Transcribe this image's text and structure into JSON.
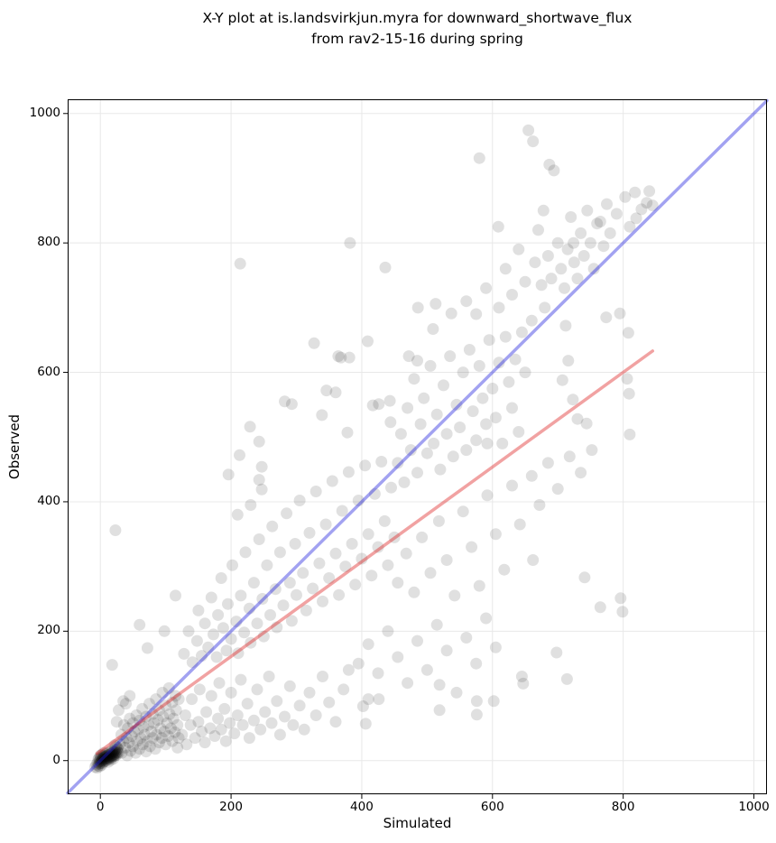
{
  "title": "X-Y plot at is.landsvirkjun.myra for downward_shortwave_flux\nfrom rav2-15-16 during spring",
  "chart_data": {
    "type": "scatter",
    "xlabel": "Simulated",
    "ylabel": "Observed",
    "xlim": [
      -50,
      1020
    ],
    "ylim": [
      -52,
      1022
    ],
    "x_ticks": [
      0,
      200,
      400,
      600,
      800,
      1000
    ],
    "y_ticks": [
      0,
      200,
      400,
      600,
      800,
      1000
    ],
    "grid": true,
    "grid_color": "#e8e8e8",
    "spine_color": "#000000",
    "background": "#ffffff",
    "point_color": "#000000",
    "point_opacity": 0.12,
    "point_radius": 6.5,
    "lines": [
      {
        "name": "one-to-one-line",
        "color": "#2222dd",
        "opacity": 0.42,
        "width": 3.5,
        "from": [
          -50,
          -50
        ],
        "to": [
          1020,
          1020
        ]
      },
      {
        "name": "regression-line",
        "color": "#dd2222",
        "opacity": 0.42,
        "width": 3.5,
        "from": [
          -5,
          11
        ],
        "to": [
          845,
          633
        ]
      }
    ],
    "points": [
      [
        -8,
        -10
      ],
      [
        -6,
        -6
      ],
      [
        -5,
        -11
      ],
      [
        -4,
        -3
      ],
      [
        -3,
        -8
      ],
      [
        -3,
        2
      ],
      [
        -2,
        -5
      ],
      [
        -2,
        4
      ],
      [
        -1,
        -1
      ],
      [
        -1,
        -9
      ],
      [
        0,
        -4
      ],
      [
        0,
        3
      ],
      [
        0,
        8
      ],
      [
        1,
        -2
      ],
      [
        1,
        5
      ],
      [
        2,
        0
      ],
      [
        2,
        -7
      ],
      [
        2,
        9
      ],
      [
        3,
        3
      ],
      [
        3,
        -4
      ],
      [
        4,
        1
      ],
      [
        4,
        7
      ],
      [
        5,
        -2
      ],
      [
        5,
        5
      ],
      [
        5,
        12
      ],
      [
        6,
        2
      ],
      [
        6,
        8
      ],
      [
        7,
        -1
      ],
      [
        7,
        6
      ],
      [
        8,
        3
      ],
      [
        8,
        10
      ],
      [
        9,
        0
      ],
      [
        9,
        7
      ],
      [
        10,
        4
      ],
      [
        10,
        12
      ],
      [
        11,
        2
      ],
      [
        11,
        8
      ],
      [
        12,
        5
      ],
      [
        12,
        -2
      ],
      [
        13,
        9
      ],
      [
        13,
        3
      ],
      [
        14,
        6
      ],
      [
        14,
        13
      ],
      [
        15,
        4
      ],
      [
        15,
        10
      ],
      [
        16,
        7
      ],
      [
        16,
        1
      ],
      [
        17,
        11
      ],
      [
        17,
        5
      ],
      [
        18,
        8
      ],
      [
        18,
        15
      ],
      [
        19,
        6
      ],
      [
        19,
        12
      ],
      [
        20,
        9
      ],
      [
        20,
        3
      ],
      [
        21,
        14
      ],
      [
        21,
        7
      ],
      [
        22,
        10
      ],
      [
        22,
        17
      ],
      [
        23,
        8
      ],
      [
        23,
        13
      ],
      [
        24,
        11
      ],
      [
        25,
        16
      ],
      [
        25,
        9
      ],
      [
        26,
        13
      ],
      [
        27,
        18
      ],
      [
        28,
        12
      ],
      [
        26,
        20
      ],
      [
        24,
        22
      ],
      [
        22,
        24
      ],
      [
        25,
        60
      ],
      [
        28,
        78
      ],
      [
        30,
        25
      ],
      [
        32,
        40
      ],
      [
        33,
        12
      ],
      [
        35,
        30
      ],
      [
        35,
        92
      ],
      [
        36,
        55
      ],
      [
        38,
        20
      ],
      [
        39,
        88
      ],
      [
        40,
        35
      ],
      [
        41,
        8
      ],
      [
        42,
        50
      ],
      [
        44,
        28
      ],
      [
        45,
        65
      ],
      [
        45,
        100
      ],
      [
        46,
        15
      ],
      [
        48,
        38
      ],
      [
        50,
        22
      ],
      [
        50,
        58
      ],
      [
        52,
        45
      ],
      [
        54,
        12
      ],
      [
        55,
        70
      ],
      [
        56,
        30
      ],
      [
        58,
        48
      ],
      [
        60,
        18
      ],
      [
        60,
        62
      ],
      [
        62,
        35
      ],
      [
        64,
        80
      ],
      [
        65,
        25
      ],
      [
        66,
        52
      ],
      [
        68,
        40
      ],
      [
        70,
        14
      ],
      [
        70,
        68
      ],
      [
        72,
        30
      ],
      [
        74,
        55
      ],
      [
        75,
        88
      ],
      [
        76,
        22
      ],
      [
        78,
        45
      ],
      [
        80,
        35
      ],
      [
        80,
        72
      ],
      [
        82,
        58
      ],
      [
        84,
        18
      ],
      [
        85,
        95
      ],
      [
        86,
        40
      ],
      [
        88,
        63
      ],
      [
        90,
        28
      ],
      [
        90,
        78
      ],
      [
        92,
        50
      ],
      [
        94,
        35
      ],
      [
        95,
        105
      ],
      [
        96,
        68
      ],
      [
        98,
        45
      ],
      [
        100,
        25
      ],
      [
        100,
        85
      ],
      [
        102,
        58
      ],
      [
        104,
        38
      ],
      [
        105,
        112
      ],
      [
        106,
        72
      ],
      [
        108,
        50
      ],
      [
        110,
        30
      ],
      [
        110,
        90
      ],
      [
        112,
        65
      ],
      [
        114,
        44
      ],
      [
        115,
        100
      ],
      [
        116,
        78
      ],
      [
        118,
        55
      ],
      [
        120,
        35
      ],
      [
        120,
        95
      ],
      [
        118,
        20
      ],
      [
        18,
        148
      ],
      [
        23,
        356
      ],
      [
        60,
        210
      ],
      [
        72,
        174
      ],
      [
        98,
        200
      ],
      [
        115,
        255
      ],
      [
        125,
        40
      ],
      [
        130,
        70
      ],
      [
        132,
        25
      ],
      [
        138,
        55
      ],
      [
        140,
        95
      ],
      [
        145,
        35
      ],
      [
        150,
        60
      ],
      [
        152,
        110
      ],
      [
        155,
        45
      ],
      [
        160,
        28
      ],
      [
        162,
        75
      ],
      [
        168,
        50
      ],
      [
        170,
        100
      ],
      [
        175,
        38
      ],
      [
        180,
        65
      ],
      [
        182,
        120
      ],
      [
        185,
        48
      ],
      [
        190,
        80
      ],
      [
        192,
        30
      ],
      [
        198,
        58
      ],
      [
        200,
        105
      ],
      [
        205,
        42
      ],
      [
        210,
        70
      ],
      [
        215,
        125
      ],
      [
        218,
        55
      ],
      [
        225,
        88
      ],
      [
        228,
        35
      ],
      [
        235,
        62
      ],
      [
        240,
        110
      ],
      [
        245,
        48
      ],
      [
        252,
        75
      ],
      [
        258,
        130
      ],
      [
        262,
        58
      ],
      [
        270,
        92
      ],
      [
        275,
        40
      ],
      [
        282,
        68
      ],
      [
        290,
        115
      ],
      [
        295,
        55
      ],
      [
        305,
        85
      ],
      [
        312,
        48
      ],
      [
        320,
        105
      ],
      [
        330,
        70
      ],
      [
        340,
        130
      ],
      [
        350,
        90
      ],
      [
        360,
        60
      ],
      [
        372,
        110
      ],
      [
        380,
        140
      ],
      [
        395,
        150
      ],
      [
        410,
        180
      ],
      [
        425,
        135
      ],
      [
        440,
        200
      ],
      [
        455,
        160
      ],
      [
        470,
        120
      ],
      [
        485,
        185
      ],
      [
        500,
        140
      ],
      [
        515,
        210
      ],
      [
        530,
        170
      ],
      [
        545,
        105
      ],
      [
        560,
        190
      ],
      [
        575,
        150
      ],
      [
        590,
        220
      ],
      [
        605,
        175
      ],
      [
        128,
        165
      ],
      [
        135,
        200
      ],
      [
        141,
        152
      ],
      [
        148,
        185
      ],
      [
        150,
        232
      ],
      [
        155,
        162
      ],
      [
        160,
        212
      ],
      [
        165,
        175
      ],
      [
        170,
        252
      ],
      [
        173,
        195
      ],
      [
        178,
        160
      ],
      [
        180,
        225
      ],
      [
        185,
        282
      ],
      [
        188,
        205
      ],
      [
        193,
        170
      ],
      [
        195,
        242
      ],
      [
        200,
        188
      ],
      [
        202,
        302
      ],
      [
        208,
        215
      ],
      [
        211,
        166
      ],
      [
        215,
        255
      ],
      [
        220,
        198
      ],
      [
        222,
        322
      ],
      [
        228,
        235
      ],
      [
        230,
        182
      ],
      [
        235,
        275
      ],
      [
        240,
        212
      ],
      [
        243,
        342
      ],
      [
        248,
        250
      ],
      [
        250,
        192
      ],
      [
        255,
        302
      ],
      [
        260,
        225
      ],
      [
        263,
        362
      ],
      [
        268,
        265
      ],
      [
        270,
        206
      ],
      [
        275,
        322
      ],
      [
        280,
        240
      ],
      [
        285,
        382
      ],
      [
        290,
        275
      ],
      [
        293,
        216
      ],
      [
        298,
        335
      ],
      [
        300,
        256
      ],
      [
        305,
        402
      ],
      [
        310,
        290
      ],
      [
        315,
        232
      ],
      [
        320,
        352
      ],
      [
        325,
        266
      ],
      [
        330,
        416
      ],
      [
        335,
        305
      ],
      [
        340,
        246
      ],
      [
        345,
        365
      ],
      [
        350,
        282
      ],
      [
        355,
        432
      ],
      [
        360,
        320
      ],
      [
        365,
        256
      ],
      [
        370,
        386
      ],
      [
        375,
        300
      ],
      [
        380,
        446
      ],
      [
        385,
        335
      ],
      [
        390,
        272
      ],
      [
        395,
        402
      ],
      [
        400,
        312
      ],
      [
        405,
        456
      ],
      [
        410,
        350
      ],
      [
        415,
        286
      ],
      [
        420,
        412
      ],
      [
        425,
        330
      ],
      [
        430,
        462
      ],
      [
        435,
        370
      ],
      [
        440,
        302
      ],
      [
        445,
        422
      ],
      [
        450,
        345
      ],
      [
        196,
        442
      ],
      [
        210,
        380
      ],
      [
        213,
        472
      ],
      [
        229,
        516
      ],
      [
        230,
        395
      ],
      [
        243,
        434
      ],
      [
        243,
        493
      ],
      [
        247,
        419
      ],
      [
        247,
        454
      ],
      [
        282,
        555
      ],
      [
        293,
        551
      ],
      [
        339,
        534
      ],
      [
        346,
        572
      ],
      [
        360,
        569
      ],
      [
        364,
        625
      ],
      [
        378,
        507
      ],
      [
        381,
        623
      ],
      [
        417,
        549
      ],
      [
        426,
        551
      ],
      [
        443,
        556
      ],
      [
        444,
        523
      ],
      [
        455,
        460
      ],
      [
        460,
        505
      ],
      [
        465,
        430
      ],
      [
        470,
        545
      ],
      [
        475,
        480
      ],
      [
        480,
        590
      ],
      [
        485,
        445
      ],
      [
        490,
        520
      ],
      [
        495,
        560
      ],
      [
        500,
        475
      ],
      [
        505,
        610
      ],
      [
        509,
        667
      ],
      [
        510,
        490
      ],
      [
        513,
        706
      ],
      [
        515,
        535
      ],
      [
        520,
        450
      ],
      [
        525,
        580
      ],
      [
        530,
        505
      ],
      [
        535,
        625
      ],
      [
        537,
        691
      ],
      [
        540,
        470
      ],
      [
        545,
        550
      ],
      [
        550,
        515
      ],
      [
        555,
        600
      ],
      [
        560,
        480
      ],
      [
        565,
        635
      ],
      [
        570,
        540
      ],
      [
        575,
        495
      ],
      [
        580,
        610
      ],
      [
        585,
        560
      ],
      [
        590,
        520
      ],
      [
        592,
        490
      ],
      [
        595,
        650
      ],
      [
        600,
        575
      ],
      [
        605,
        530
      ],
      [
        610,
        615
      ],
      [
        615,
        490
      ],
      [
        620,
        655
      ],
      [
        625,
        585
      ],
      [
        630,
        545
      ],
      [
        635,
        620
      ],
      [
        640,
        508
      ],
      [
        645,
        662
      ],
      [
        650,
        600
      ],
      [
        486,
        700
      ],
      [
        560,
        710
      ],
      [
        575,
        690
      ],
      [
        590,
        730
      ],
      [
        610,
        700
      ],
      [
        620,
        760
      ],
      [
        630,
        720
      ],
      [
        640,
        790
      ],
      [
        650,
        740
      ],
      [
        655,
        974
      ],
      [
        660,
        680
      ],
      [
        662,
        957
      ],
      [
        665,
        770
      ],
      [
        670,
        820
      ],
      [
        675,
        735
      ],
      [
        678,
        850
      ],
      [
        680,
        700
      ],
      [
        685,
        780
      ],
      [
        687,
        921
      ],
      [
        690,
        745
      ],
      [
        694,
        912
      ],
      [
        700,
        800
      ],
      [
        705,
        760
      ],
      [
        710,
        730
      ],
      [
        715,
        790
      ],
      [
        720,
        840
      ],
      [
        724,
        800
      ],
      [
        725,
        770
      ],
      [
        730,
        745
      ],
      [
        735,
        815
      ],
      [
        740,
        780
      ],
      [
        745,
        850
      ],
      [
        750,
        800
      ],
      [
        755,
        760
      ],
      [
        760,
        830
      ],
      [
        765,
        833
      ],
      [
        770,
        795
      ],
      [
        775,
        860
      ],
      [
        780,
        815
      ],
      [
        790,
        845
      ],
      [
        803,
        871
      ],
      [
        810,
        825
      ],
      [
        820,
        838
      ],
      [
        828,
        852
      ],
      [
        836,
        862
      ],
      [
        818,
        878
      ],
      [
        840,
        880
      ],
      [
        845,
        858
      ],
      [
        712,
        672
      ],
      [
        716,
        618
      ],
      [
        707,
        588
      ],
      [
        723,
        558
      ],
      [
        744,
        521
      ],
      [
        730,
        528
      ],
      [
        809,
        567
      ],
      [
        810,
        504
      ],
      [
        806,
        590
      ],
      [
        774,
        685
      ],
      [
        795,
        691
      ],
      [
        808,
        661
      ],
      [
        660,
        440
      ],
      [
        672,
        395
      ],
      [
        685,
        460
      ],
      [
        700,
        420
      ],
      [
        718,
        470
      ],
      [
        735,
        445
      ],
      [
        752,
        480
      ],
      [
        662,
        310
      ],
      [
        455,
        275
      ],
      [
        468,
        320
      ],
      [
        480,
        260
      ],
      [
        492,
        345
      ],
      [
        505,
        290
      ],
      [
        518,
        370
      ],
      [
        530,
        310
      ],
      [
        542,
        255
      ],
      [
        555,
        385
      ],
      [
        568,
        330
      ],
      [
        580,
        270
      ],
      [
        592,
        410
      ],
      [
        605,
        350
      ],
      [
        618,
        295
      ],
      [
        630,
        425
      ],
      [
        642,
        365
      ],
      [
        580,
        931
      ],
      [
        609,
        825
      ],
      [
        382,
        800
      ],
      [
        214,
        768
      ],
      [
        436,
        762
      ],
      [
        327,
        645
      ],
      [
        368,
        623
      ],
      [
        409,
        648
      ],
      [
        472,
        625
      ],
      [
        485,
        618
      ],
      [
        402,
        84
      ],
      [
        406,
        57
      ],
      [
        410,
        95
      ],
      [
        426,
        95
      ],
      [
        519,
        78
      ],
      [
        519,
        117
      ],
      [
        576,
        92
      ],
      [
        576,
        71
      ],
      [
        602,
        92
      ],
      [
        645,
        130
      ],
      [
        647,
        119
      ],
      [
        698,
        167
      ],
      [
        714,
        126
      ],
      [
        741,
        283
      ],
      [
        765,
        237
      ],
      [
        796,
        251
      ],
      [
        799,
        230
      ]
    ]
  }
}
